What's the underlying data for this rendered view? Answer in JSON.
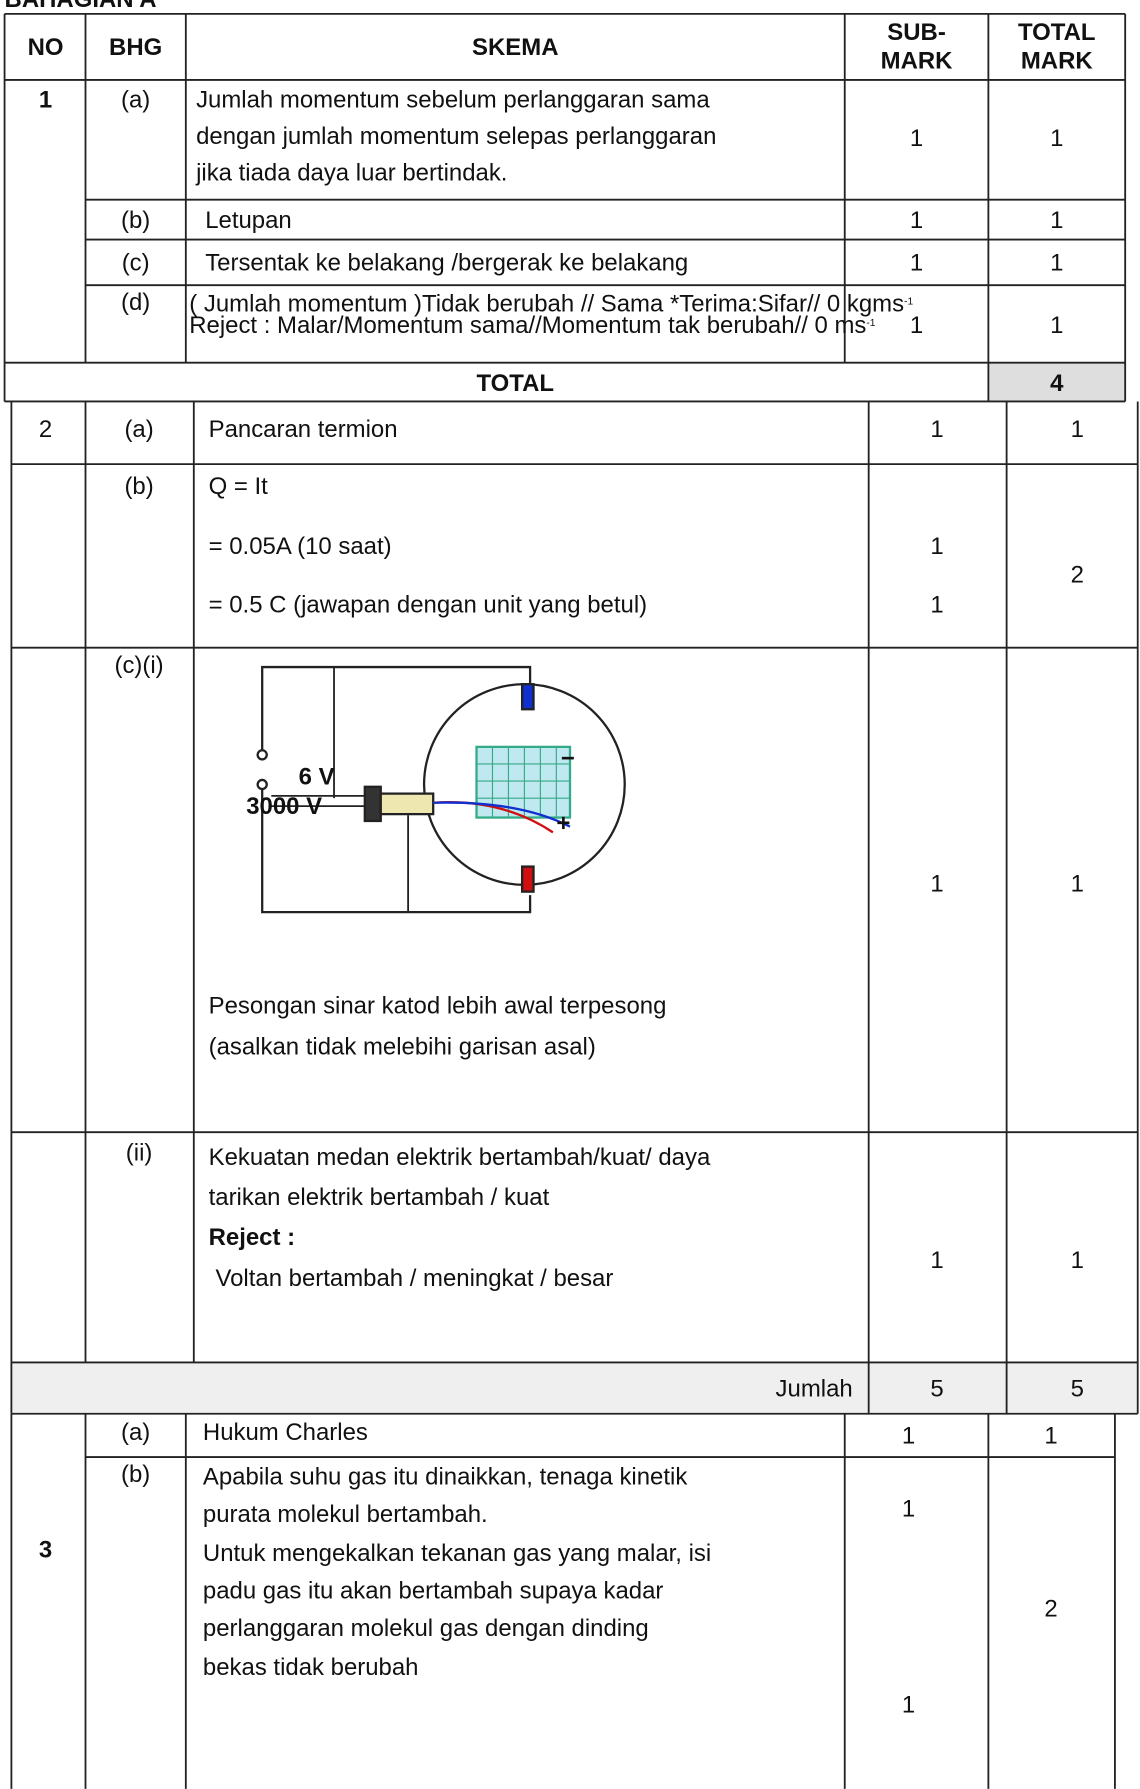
{
  "header": {
    "title": "BAHAGIAN A",
    "no": "NO",
    "bhg": "BHG",
    "skema": "SKEMA",
    "sub_mark": [
      "SUB-",
      "MARK"
    ],
    "total_mark": [
      "TOTAL",
      "MARK"
    ]
  },
  "q1": {
    "no": 1,
    "rows": [
      {
        "part": "(a)",
        "scheme": [
          "Jumlah momentum sebelum perlanggaran sama",
          "dengan jumlah momentum selepas perlanggaran",
          "jika tiada daya luar bertindak."
        ],
        "sub": 1,
        "total": 1
      },
      {
        "part": "(b)",
        "scheme": [
          "Letupan"
        ],
        "sub": 1,
        "total": 1
      },
      {
        "part": "(c)",
        "scheme": [
          "Tersentak ke belakang /bergerak ke belakang"
        ],
        "sub": 1,
        "total": 1
      },
      {
        "part": "(d)",
        "scheme": [
          [
            "( Jumlah momentum )Tidak berubah // Sama *Terima:Sifar// 0 kgms",
            "-1"
          ],
          [
            "Reject : Malar/Momentum sama//Momentum tak berubah// 0 ms",
            "-1"
          ]
        ],
        "sub": 1,
        "total": 1
      }
    ],
    "total_label": "TOTAL",
    "total": 4
  },
  "q2": {
    "no": 2,
    "rows": [
      {
        "part": "(a)",
        "scheme": [
          "Pancaran termion"
        ],
        "sub": [
          1
        ],
        "total": 1
      },
      {
        "part": "(b)",
        "scheme": [
          "Q = It",
          "= 0.05A (10 saat)",
          "= 0.5 C (jawapan dengan unit yang betul)"
        ],
        "sub": [
          1,
          1
        ],
        "total": 2
      },
      {
        "part": "(c)(i)",
        "diagram": {
          "labels": [
            "6 V",
            "3000 V",
            "−",
            "+"
          ]
        },
        "scheme": [
          "Pesongan sinar katod lebih awal terpesong",
          "(asalkan tidak melebihi garisan asal)"
        ],
        "sub": [
          1
        ],
        "total": 1
      },
      {
        "part": "(ii)",
        "scheme": [
          "Kekuatan medan elektrik bertambah/kuat/ daya",
          "tarikan elektrik bertambah / kuat"
        ],
        "reject_label": "Reject :",
        "reject": "Voltan bertambah / meningkat / besar",
        "sub": [
          1
        ],
        "total": 1
      }
    ],
    "jumlah_label": "Jumlah",
    "jumlah_sub": 5,
    "jumlah_total": 5
  },
  "q3": {
    "no": 3,
    "rows": [
      {
        "part": "(a)",
        "scheme": [
          "Hukum Charles"
        ],
        "sub": [
          1
        ],
        "total": 1
      },
      {
        "part": "(b)",
        "scheme": [
          "Apabila suhu gas itu dinaikkan, tenaga kinetik",
          "purata molekul bertambah.",
          "Untuk mengekalkan tekanan gas yang malar, isi",
          "padu gas itu akan bertambah supaya kadar",
          "perlanggaran molekul gas dengan dinding",
          "bekas tidak berubah"
        ],
        "sub": [
          1,
          1
        ],
        "total": 2
      }
    ]
  }
}
